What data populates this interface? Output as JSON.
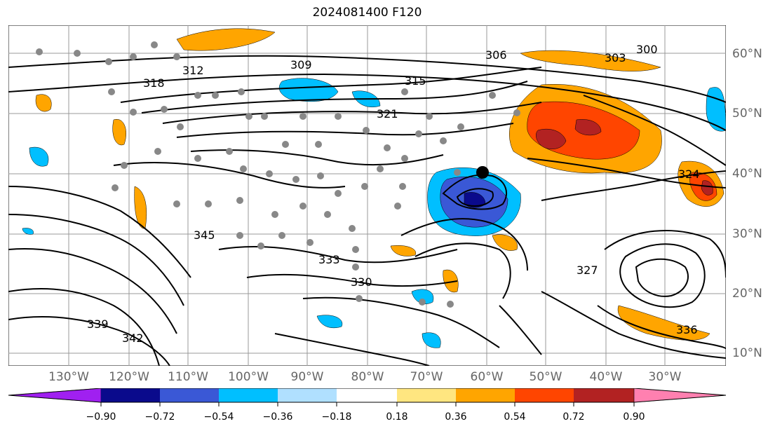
{
  "title": "2024081400 F120",
  "map": {
    "contour_labels": [
      "309",
      "312",
      "315",
      "318",
      "321",
      "324",
      "327",
      "330",
      "333",
      "336",
      "339",
      "342",
      "345",
      "300",
      "303",
      "306"
    ],
    "lon_labels": [
      "130°W",
      "120°W",
      "110°W",
      "100°W",
      "90°W",
      "80°W",
      "70°W",
      "60°W",
      "50°W",
      "40°W",
      "30°W"
    ],
    "lat_labels": [
      "60°N",
      "50°N",
      "40°N",
      "30°N",
      "20°N",
      "10°N"
    ],
    "low_center_marker": "black-dot"
  },
  "colorbar": {
    "ticks": [
      "−0.90",
      "−0.72",
      "−0.54",
      "−0.36",
      "−0.18",
      "0.18",
      "0.36",
      "0.54",
      "0.72",
      "0.90"
    ],
    "colors": [
      "#a020f0",
      "#0a0a8c",
      "#3a58d6",
      "#00bfff",
      "#b0e0ff",
      "#ffffff",
      "#ffe680",
      "#ffa500",
      "#ff4500",
      "#b22222",
      "#ff80b0"
    ]
  }
}
